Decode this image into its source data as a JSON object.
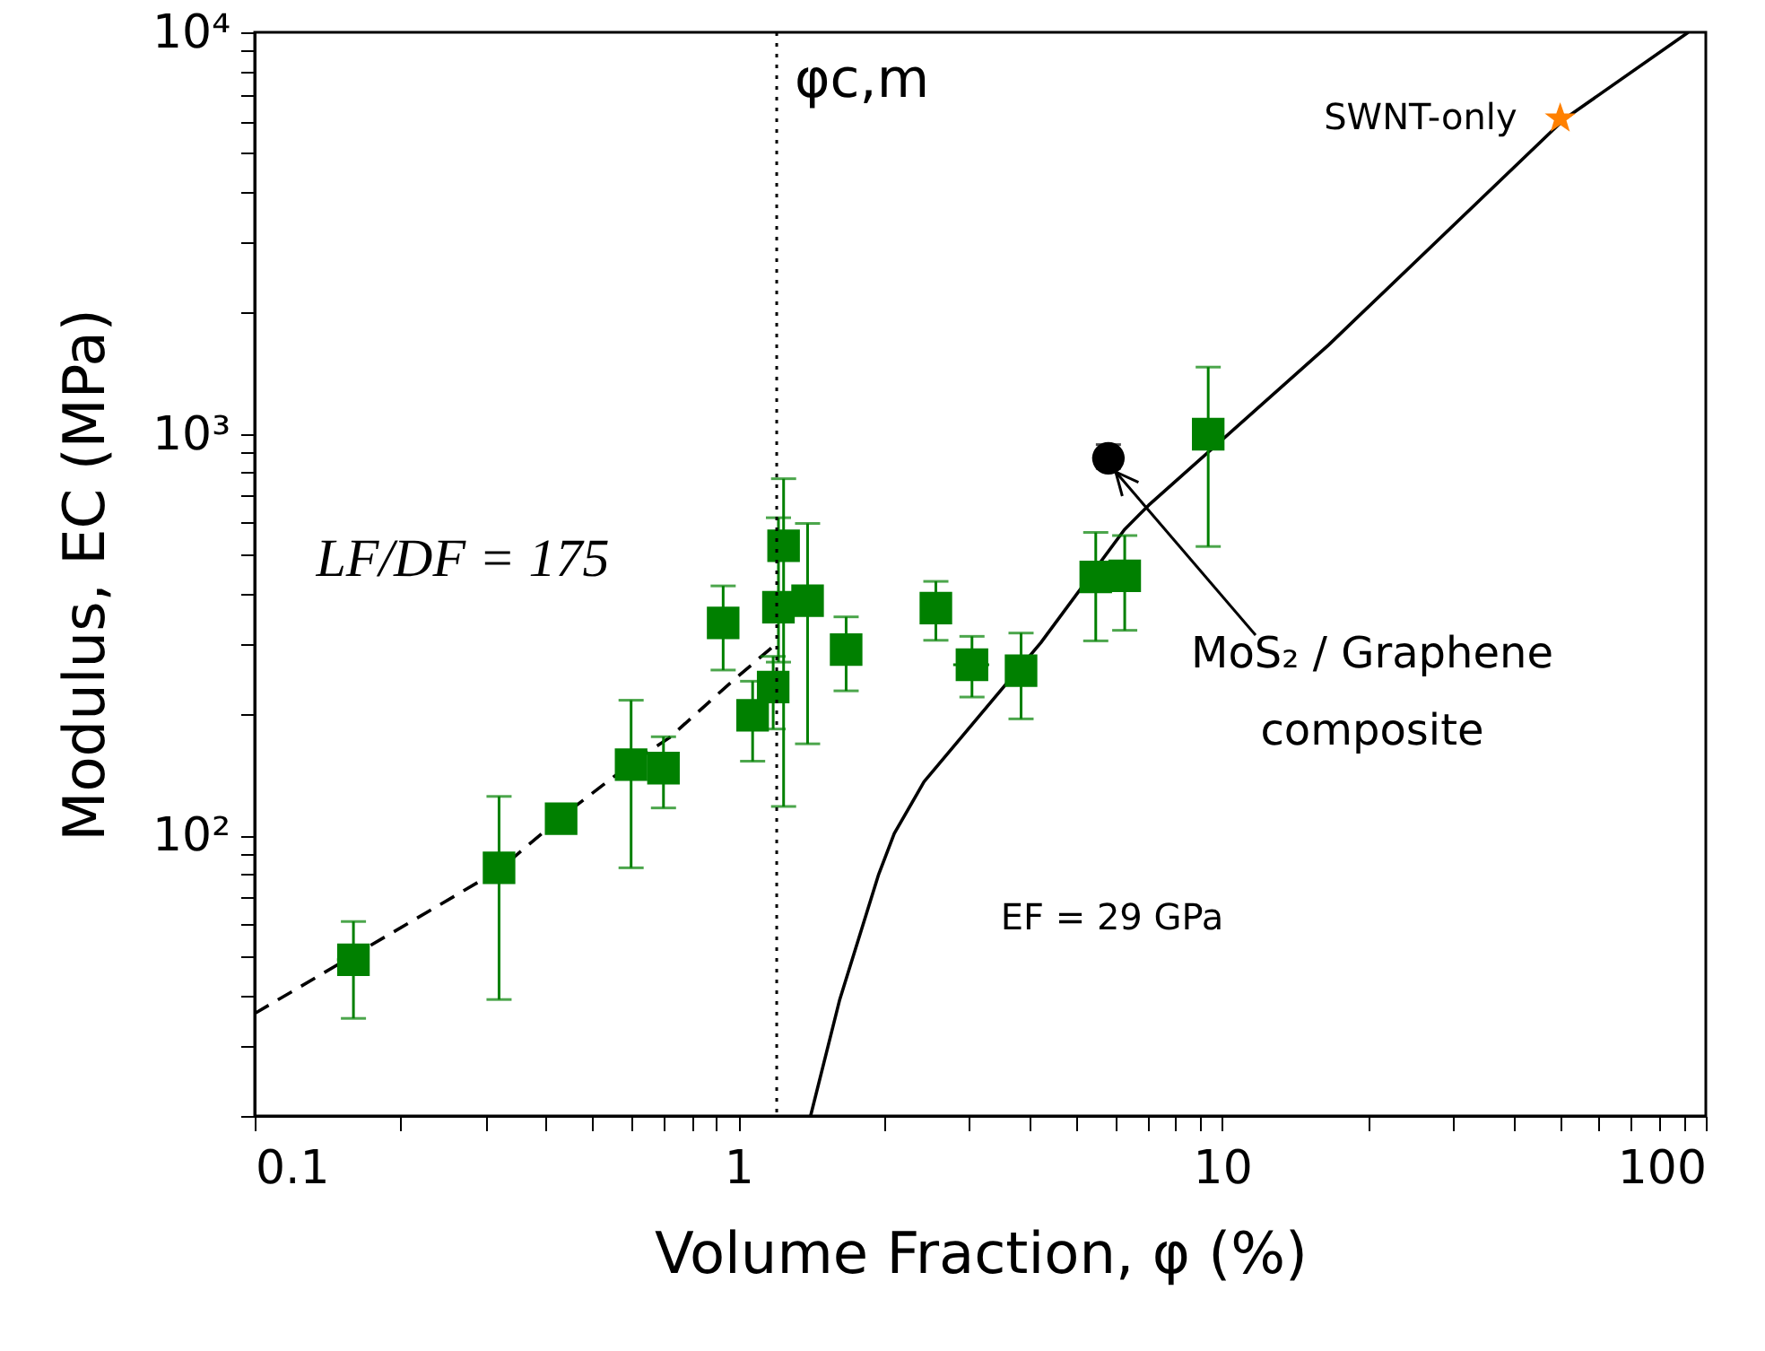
{
  "chart_data": {
    "type": "scatter",
    "xlabel": "Volume Fraction, φ (%)",
    "ylabel": "Modulus, EC (MPa)",
    "log": "xy",
    "xlim": [
      0.1,
      100
    ],
    "ylim": [
      20,
      10000
    ],
    "xticks": [
      0.1,
      {
        "value": 0.2,
        "label": null
      },
      {
        "value": 0.3,
        "label": null
      },
      {
        "value": 0.4,
        "label": null
      },
      {
        "value": 0.5,
        "label": null
      },
      {
        "value": 0.6,
        "label": null
      },
      {
        "value": 0.7,
        "label": null
      },
      {
        "value": 0.8,
        "label": null
      },
      {
        "value": 0.9,
        "label": null
      },
      1,
      {
        "value": 2,
        "label": null
      },
      {
        "value": 3,
        "label": null
      },
      {
        "value": 4,
        "label": null
      },
      {
        "value": 5,
        "label": null
      },
      {
        "value": 6,
        "label": null
      },
      {
        "value": 7,
        "label": null
      },
      {
        "value": 8,
        "label": null
      },
      {
        "value": 9,
        "label": null
      },
      10,
      {
        "value": 20,
        "label": null
      },
      {
        "value": 30,
        "label": null
      },
      {
        "value": 40,
        "label": null
      },
      {
        "value": 50,
        "label": null
      },
      {
        "value": 60,
        "label": null
      },
      {
        "value": 70,
        "label": null
      },
      {
        "value": 80,
        "label": null
      },
      {
        "value": 90,
        "label": null
      },
      100
    ],
    "yticks": [
      {
        "value": 20,
        "label": null
      },
      {
        "value": 30,
        "label": null
      },
      {
        "value": 40,
        "label": null
      },
      {
        "value": 50,
        "label": null
      },
      {
        "value": 60,
        "label": null
      },
      {
        "value": 70,
        "label": null
      },
      {
        "value": 80,
        "label": null
      },
      {
        "value": 90,
        "label": null
      },
      {
        "value": 100,
        "label": "10²"
      },
      {
        "value": 200,
        "label": null
      },
      {
        "value": 300,
        "label": null
      },
      {
        "value": 400,
        "label": null
      },
      {
        "value": 500,
        "label": null
      },
      {
        "value": 600,
        "label": null
      },
      {
        "value": 700,
        "label": null
      },
      {
        "value": 800,
        "label": null
      },
      {
        "value": 900,
        "label": null
      },
      {
        "value": 1000,
        "label": "10³"
      },
      {
        "value": 2000,
        "label": null
      },
      {
        "value": 3000,
        "label": null
      },
      {
        "value": 4000,
        "label": null
      },
      {
        "value": 5000,
        "label": null
      },
      {
        "value": 6000,
        "label": null
      },
      {
        "value": 7000,
        "label": null
      },
      {
        "value": 8000,
        "label": null
      },
      {
        "value": 9000,
        "label": null
      },
      {
        "value": 10000,
        "label": "10⁴"
      }
    ],
    "ref_lines": [
      {
        "axis": "x",
        "value": 1.2,
        "label": "φc,m",
        "line_style": "dotted",
        "color": "#000000"
      }
    ],
    "series": [
      {
        "type": "line",
        "color": "#000000",
        "line_style": "dashed",
        "marker": "none",
        "x": [
          0.1,
          0.32,
          0.43,
          0.6,
          0.72,
          0.96,
          1.17
        ],
        "values": [
          36,
          82,
          111,
          151,
          175,
          239,
          293
        ]
      },
      {
        "type": "line",
        "color": "#000000",
        "line_style": "solid",
        "marker": "none",
        "x": [
          1.41,
          1.62,
          1.95,
          2.1,
          2.42,
          4.22,
          6.28,
          7.05,
          16.6,
          51,
          92
        ],
        "values": [
          20,
          39,
          80,
          101,
          136,
          302,
          577,
          664,
          1664,
          6080,
          10000
        ]
      },
      {
        "type": "scatter",
        "color": "#008000",
        "marker": "square",
        "x": [
          0.16,
          0.32,
          0.43,
          0.6,
          0.7,
          0.93,
          1.07,
          1.18,
          1.21,
          1.24,
          1.39,
          1.67,
          2.56,
          3.04,
          3.84,
          5.48,
          6.29,
          9.36
        ],
        "values": [
          49,
          83,
          110,
          150,
          147,
          338,
          199,
          234,
          370,
          526,
          384,
          290,
          368,
          266,
          257,
          440,
          443,
          998
        ],
        "errors": [
          [
            35,
            61
          ],
          [
            39,
            125
          ],
          null,
          [
            83,
            217
          ],
          [
            117,
            176
          ],
          [
            258,
            418
          ],
          [
            153,
            242
          ],
          [
            184,
            279
          ],
          [
            270,
            618
          ],
          [
            118,
            773
          ],
          [
            169,
            598
          ],
          [
            229,
            350
          ],
          [
            306,
            429
          ],
          [
            221,
            313
          ],
          [
            195,
            319
          ],
          [
            305,
            568
          ],
          [
            324,
            558
          ],
          [
            524,
            1466
          ]
        ],
        "xerrors": [
          0.012,
          null,
          null,
          null,
          null,
          null,
          null,
          null,
          null,
          null,
          null,
          null,
          null,
          0.26,
          null,
          null,
          null,
          null
        ]
      },
      {
        "type": "scatter",
        "color": "#000000",
        "marker": "circle",
        "x": [
          5.82
        ],
        "values": [
          869
        ],
        "errors": [
          [
            820,
            940
          ]
        ]
      },
      {
        "type": "scatter",
        "color": "#ff8000",
        "marker": "star",
        "x": [
          50
        ],
        "values": [
          6100
        ]
      }
    ],
    "annotations": [
      "LF/DF = 175",
      "EF = 29 GPa",
      {
        "text": "SWNT-only",
        "x": 50,
        "y": 6100
      },
      {
        "text": "MoS₂ / Graphene\ncomposite",
        "x": 5.82,
        "y": 869
      }
    ]
  }
}
